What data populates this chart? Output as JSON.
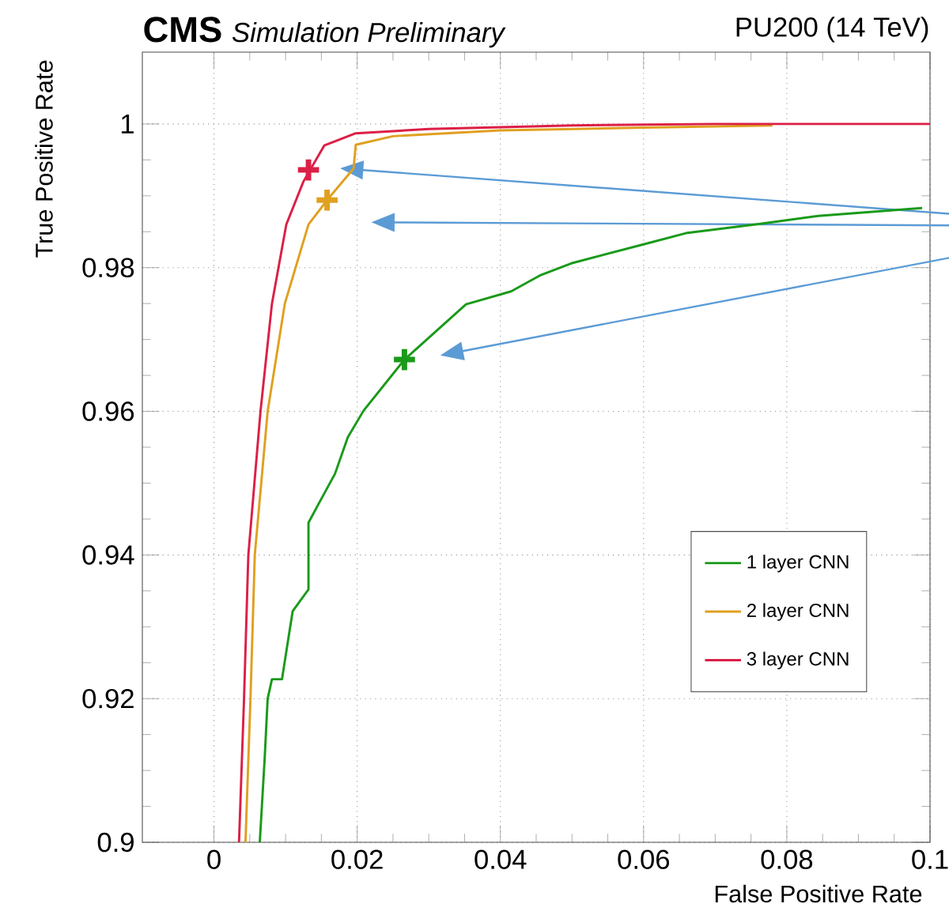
{
  "chart_data": {
    "type": "line",
    "title": "CMS",
    "subtitle": "Simulation Preliminary",
    "annotations": [
      "PU200 (14 TeV)"
    ],
    "xlabel": "False Positive Rate",
    "ylabel": "True Positive Rate",
    "xlim": [
      -0.01,
      0.1
    ],
    "ylim": [
      0.9,
      1.01
    ],
    "xticks": [
      0,
      0.02,
      0.04,
      0.06,
      0.08,
      0.1
    ],
    "yticks": [
      0.9,
      0.92,
      0.94,
      0.96,
      0.98,
      1
    ],
    "grid": true,
    "legend": "bottom right",
    "series": [
      {
        "name": "1 layer CNN",
        "color": "#1a9a1a",
        "x": [
          0.0064,
          0.0071,
          0.0075,
          0.0081,
          0.0095,
          0.0103,
          0.011,
          0.0132,
          0.0132,
          0.0145,
          0.0169,
          0.0187,
          0.0209,
          0.0266,
          0.0352,
          0.0415,
          0.0455,
          0.0499,
          0.0602,
          0.0659,
          0.0763,
          0.0844,
          0.0989
        ],
        "values": [
          0.9,
          0.912,
          0.92,
          0.9227,
          0.9227,
          0.9278,
          0.9322,
          0.9352,
          0.9445,
          0.9469,
          0.9513,
          0.9564,
          0.9601,
          0.9672,
          0.9749,
          0.9767,
          0.9789,
          0.9806,
          0.9833,
          0.9848,
          0.9861,
          0.9872,
          0.9883
        ]
      },
      {
        "name": "2 layer CNN",
        "color": "#e0a020",
        "x": [
          0.0044,
          0.0051,
          0.0057,
          0.0075,
          0.0099,
          0.0132,
          0.0158,
          0.0195,
          0.0198,
          0.025,
          0.04,
          0.06,
          0.078
        ],
        "values": [
          0.9,
          0.92,
          0.94,
          0.96,
          0.975,
          0.986,
          0.9894,
          0.9938,
          0.9971,
          0.9983,
          0.9991,
          0.9995,
          0.9998
        ]
      },
      {
        "name": "3 layer CNN",
        "color": "#dc1f46",
        "x": [
          0.0035,
          0.0042,
          0.0048,
          0.0065,
          0.0081,
          0.0101,
          0.0125,
          0.0154,
          0.0198,
          0.03,
          0.05,
          0.07,
          0.1
        ],
        "values": [
          0.9,
          0.92,
          0.94,
          0.96,
          0.975,
          0.986,
          0.992,
          0.997,
          0.9987,
          0.9993,
          0.9998,
          1.0,
          1.0
        ]
      },
      {
        "type": "scatter",
        "marker": "cross",
        "color": "#1a9a1a",
        "x": [
          0.0266
        ],
        "values": [
          0.9672
        ]
      },
      {
        "type": "scatter",
        "marker": "cross",
        "color": "#e0a020",
        "x": [
          0.0158
        ],
        "values": [
          0.9894
        ]
      },
      {
        "type": "scatter",
        "marker": "cross",
        "color": "#dc1f46",
        "x": [
          0.0132
        ],
        "values": [
          0.9936
        ]
      }
    ]
  }
}
